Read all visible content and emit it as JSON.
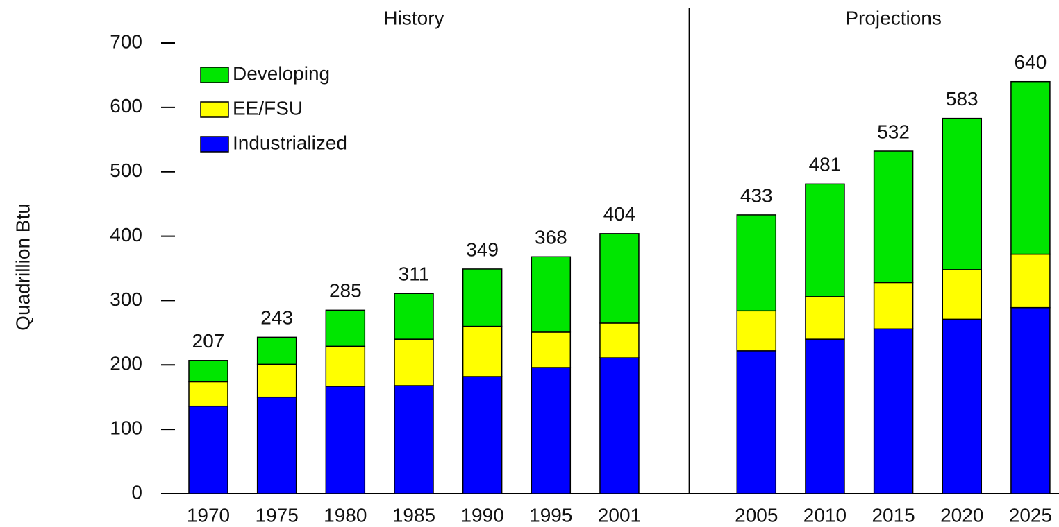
{
  "chart_data": {
    "type": "stacked-bar",
    "y_label": "Quadrillion Btu",
    "sections": [
      {
        "label": "History"
      },
      {
        "label": "Projections"
      }
    ],
    "categories": [
      "1970",
      "1975",
      "1980",
      "1985",
      "1990",
      "1995",
      "2001",
      null,
      "2005",
      "2010",
      "2015",
      "2020",
      "2025"
    ],
    "series": [
      {
        "name": "Industrialized",
        "color": "#0000ff",
        "values": [
          136,
          150,
          167,
          168,
          182,
          196,
          211,
          null,
          222,
          240,
          256,
          271,
          289
        ]
      },
      {
        "name": "EE/FSU",
        "color": "#ffff00",
        "values": [
          38,
          51,
          62,
          72,
          78,
          55,
          54,
          null,
          62,
          66,
          72,
          77,
          83
        ]
      },
      {
        "name": "Developing",
        "color": "#00e600",
        "values": [
          33,
          42,
          56,
          71,
          89,
          117,
          139,
          null,
          149,
          175,
          204,
          235,
          268
        ]
      }
    ],
    "totals": [
      207,
      243,
      285,
      311,
      349,
      368,
      404,
      null,
      433,
      481,
      532,
      583,
      640
    ],
    "ylim": [
      0,
      700
    ],
    "yticks": [
      0,
      100,
      200,
      300,
      400,
      500,
      600,
      700
    ],
    "legend": "top-left"
  }
}
